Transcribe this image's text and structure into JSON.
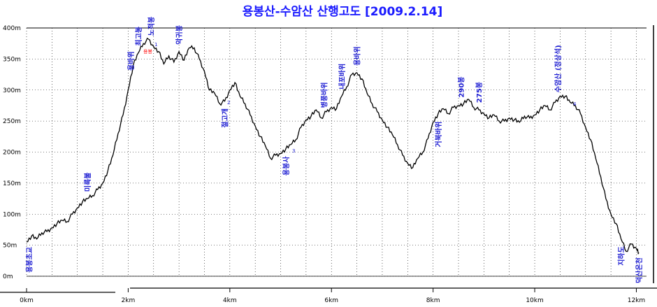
{
  "chart_data": {
    "type": "line",
    "title": "용봉산-수암산 산행고도 [2009.2.14]",
    "xlabel": "",
    "ylabel": "",
    "x_unit": "km",
    "y_unit": "m",
    "xlim": [
      0,
      12.2
    ],
    "ylim": [
      0,
      400
    ],
    "grid": true,
    "y_ticks": [
      "0m",
      "50m",
      "100m",
      "150m",
      "200m",
      "250m",
      "300m",
      "350m",
      "400m"
    ],
    "x_ticks": [
      "0km",
      "2km",
      "4km",
      "6km",
      "8km",
      "10km",
      "12km"
    ],
    "x": [
      0,
      0.1,
      0.2,
      0.3,
      0.4,
      0.5,
      0.6,
      0.7,
      0.8,
      0.9,
      1.0,
      1.1,
      1.2,
      1.3,
      1.4,
      1.5,
      1.6,
      1.7,
      1.8,
      1.9,
      2.0,
      2.1,
      2.2,
      2.3,
      2.4,
      2.5,
      2.6,
      2.7,
      2.8,
      2.9,
      3.0,
      3.1,
      3.2,
      3.3,
      3.4,
      3.5,
      3.6,
      3.7,
      3.8,
      3.9,
      4.0,
      4.1,
      4.2,
      4.3,
      4.4,
      4.5,
      4.6,
      4.7,
      4.8,
      4.9,
      5.0,
      5.1,
      5.2,
      5.3,
      5.4,
      5.5,
      5.6,
      5.7,
      5.8,
      5.9,
      6.0,
      6.1,
      6.2,
      6.3,
      6.4,
      6.5,
      6.6,
      6.7,
      6.8,
      6.9,
      7.0,
      7.1,
      7.2,
      7.3,
      7.4,
      7.5,
      7.6,
      7.7,
      7.8,
      7.9,
      8.0,
      8.1,
      8.2,
      8.3,
      8.4,
      8.5,
      8.6,
      8.7,
      8.8,
      8.9,
      9.0,
      9.1,
      9.2,
      9.3,
      9.4,
      9.5,
      9.6,
      9.7,
      9.8,
      9.9,
      10.0,
      10.1,
      10.2,
      10.3,
      10.4,
      10.5,
      10.6,
      10.7,
      10.8,
      10.9,
      11.0,
      11.1,
      11.2,
      11.3,
      11.4,
      11.5,
      11.6,
      11.7,
      11.8,
      11.9,
      12.0,
      12.05
    ],
    "y": [
      55,
      65,
      60,
      70,
      72,
      78,
      85,
      90,
      88,
      100,
      110,
      120,
      125,
      130,
      140,
      150,
      170,
      195,
      230,
      260,
      300,
      340,
      360,
      375,
      382,
      370,
      362,
      342,
      355,
      345,
      362,
      348,
      368,
      368,
      350,
      330,
      300,
      295,
      278,
      282,
      300,
      312,
      290,
      278,
      260,
      242,
      225,
      210,
      190,
      195,
      198,
      205,
      212,
      220,
      240,
      252,
      258,
      268,
      255,
      265,
      272,
      270,
      290,
      305,
      325,
      328,
      318,
      295,
      278,
      265,
      252,
      240,
      228,
      212,
      195,
      182,
      175,
      190,
      200,
      222,
      248,
      262,
      270,
      262,
      272,
      275,
      278,
      285,
      272,
      268,
      262,
      255,
      260,
      250,
      250,
      255,
      252,
      248,
      258,
      255,
      260,
      268,
      275,
      268,
      280,
      290,
      290,
      280,
      275,
      262,
      240,
      220,
      190,
      160,
      125,
      100,
      85,
      60,
      40,
      52,
      45,
      38
    ],
    "waypoints": [
      {
        "label": "용봉초교",
        "x": 0.05
      },
      {
        "label": "미륵불",
        "x": 1.2
      },
      {
        "label": "용바위",
        "x": 2.05
      },
      {
        "label": "노적봉",
        "x": 2.45
      },
      {
        "label": "악귀봉",
        "x": 3.0
      },
      {
        "label": "최고봉",
        "x": 2.2
      },
      {
        "label": "절고개",
        "x": 3.9
      },
      {
        "label": "용봉사",
        "x": 5.1
      },
      {
        "label": "병풍바위",
        "x": 5.85
      },
      {
        "label": "내포바위",
        "x": 6.2
      },
      {
        "label": "용바위",
        "x": 6.5
      },
      {
        "label": "거북바위",
        "x": 8.1
      },
      {
        "label": "290봉",
        "x": 8.55
      },
      {
        "label": "275봉",
        "x": 8.9
      },
      {
        "label": "수암산 (정상석)",
        "x": 10.45
      },
      {
        "label": "지하도",
        "x": 11.7
      },
      {
        "label": "덕산온천",
        "x": 12.05
      }
    ]
  },
  "annotations": {
    "summit_mark": "용봉",
    "point_1": "1",
    "point_2": "2",
    "point_3": "3",
    "point_4": "4"
  },
  "colors": {
    "title": "#1a1aff",
    "line": "#000000",
    "waypoint": "#1e1ed2",
    "grid": "#000000",
    "summit": "#ff0000"
  }
}
